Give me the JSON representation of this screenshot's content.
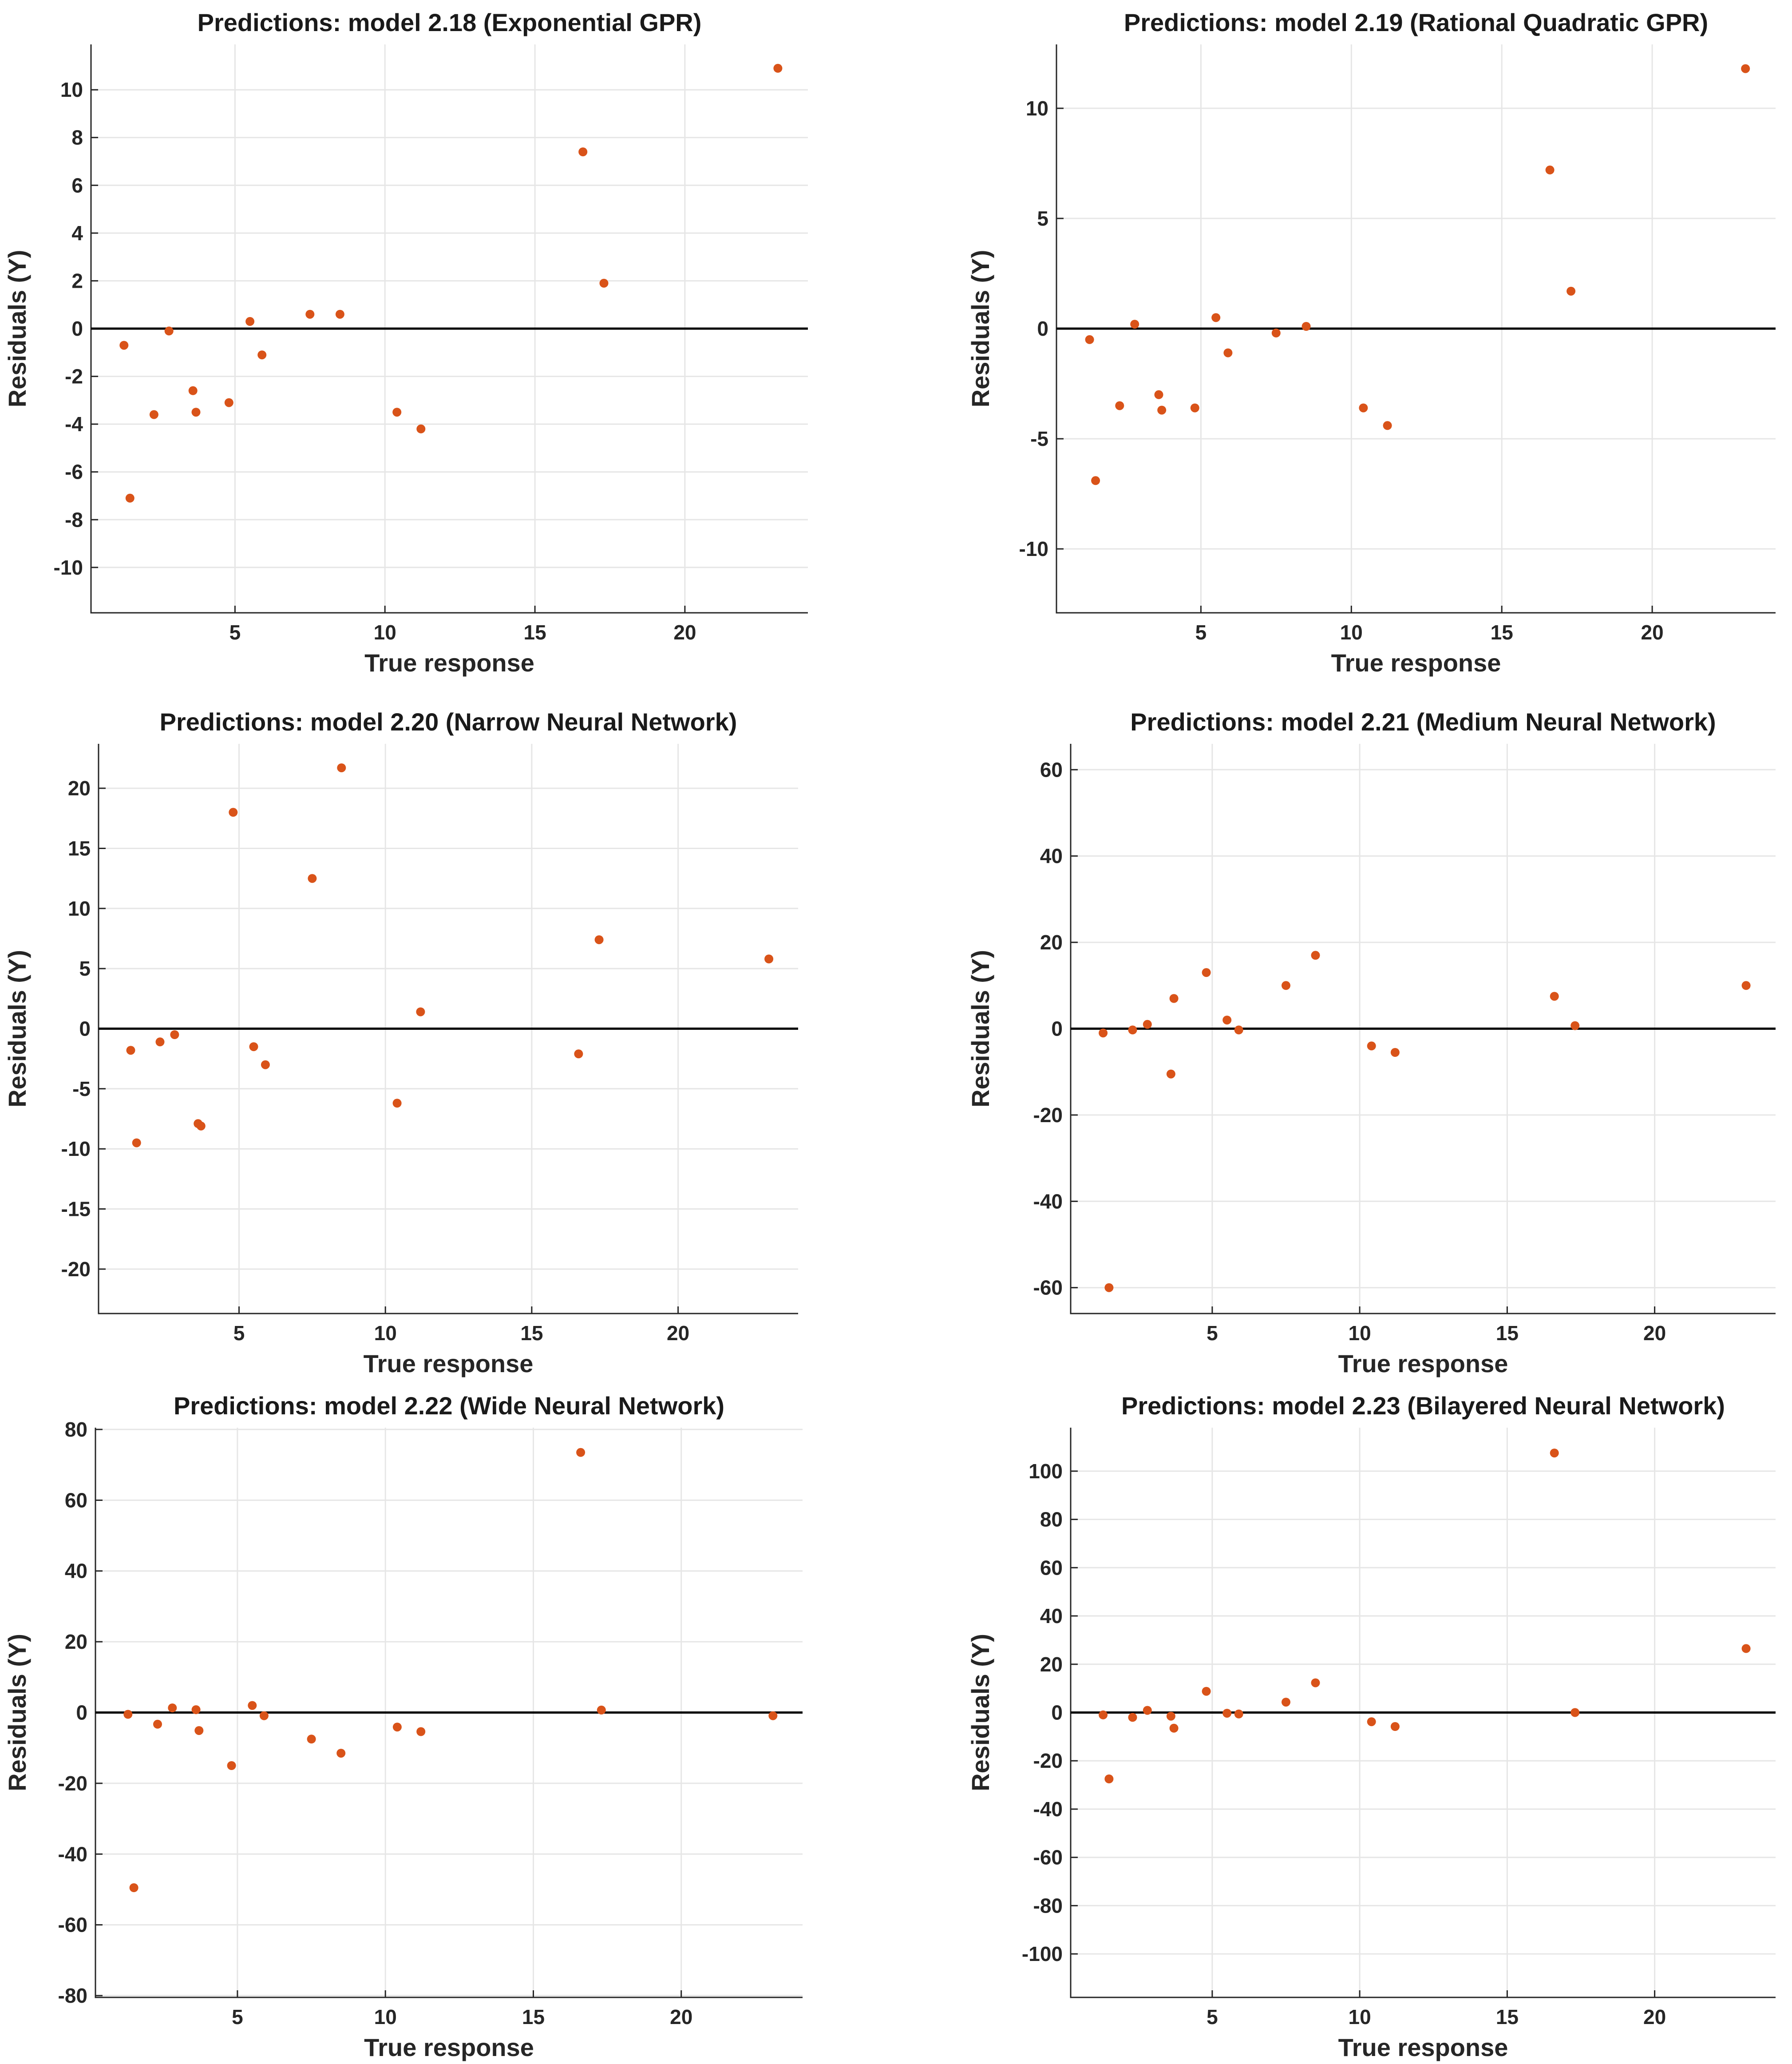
{
  "chart_data": [
    {
      "type": "scatter",
      "title": "Predictions: model 2.18 (Exponential GPR)",
      "xlabel": "True response",
      "ylabel": "Residuals (Y)",
      "xlim": [
        0.2,
        24.1
      ],
      "ylim": [
        -11.9,
        11.9
      ],
      "xticks": [
        5,
        10,
        15,
        20
      ],
      "yticks": [
        -10,
        -8,
        -6,
        -4,
        -2,
        0,
        2,
        4,
        6,
        8,
        10
      ],
      "grid": true,
      "zero_line": true,
      "marker_color": "#D95319",
      "x": [
        1.3,
        1.5,
        2.3,
        2.8,
        3.6,
        3.7,
        4.8,
        5.5,
        5.9,
        7.5,
        8.5,
        10.4,
        11.2,
        16.6,
        17.3,
        23.1
      ],
      "y": [
        -0.7,
        -7.1,
        -3.6,
        -0.1,
        -2.6,
        -3.5,
        -3.1,
        0.3,
        -1.1,
        0.6,
        0.6,
        -3.5,
        -4.2,
        7.4,
        1.9,
        10.9
      ]
    },
    {
      "type": "scatter",
      "title": "Predictions: model 2.19 (Rational Quadratic GPR)",
      "xlabel": "True response",
      "ylabel": "Residuals (Y)",
      "xlim": [
        0.2,
        24.1
      ],
      "ylim": [
        -12.9,
        12.9
      ],
      "xticks": [
        5,
        10,
        15,
        20
      ],
      "yticks": [
        -10,
        -5,
        0,
        5,
        10
      ],
      "grid": true,
      "zero_line": true,
      "marker_color": "#D95319",
      "x": [
        1.3,
        1.5,
        2.3,
        2.8,
        3.6,
        3.7,
        4.8,
        5.5,
        5.9,
        7.5,
        8.5,
        10.4,
        11.2,
        16.6,
        17.3,
        23.1
      ],
      "y": [
        -0.5,
        -6.9,
        -3.5,
        0.2,
        -3.0,
        -3.7,
        -3.6,
        0.5,
        -1.1,
        -0.2,
        0.1,
        -3.6,
        -4.4,
        7.2,
        1.7,
        11.8
      ]
    },
    {
      "type": "scatter",
      "title": "Predictions: model 2.20 (Narrow Neural Network)",
      "xlabel": "True response",
      "ylabel": "Residuals (Y)",
      "xlim": [
        0.2,
        24.1
      ],
      "ylim": [
        -23.7,
        23.7
      ],
      "xticks": [
        5,
        10,
        15,
        20
      ],
      "yticks": [
        -20,
        -15,
        -10,
        -5,
        0,
        5,
        10,
        15,
        20
      ],
      "grid": true,
      "zero_line": true,
      "marker_color": "#D95319",
      "x": [
        1.3,
        1.5,
        2.3,
        2.8,
        3.6,
        3.7,
        4.8,
        5.5,
        5.9,
        7.5,
        8.5,
        10.4,
        11.2,
        16.6,
        17.3,
        23.1
      ],
      "y": [
        -1.8,
        -9.5,
        -1.1,
        -0.5,
        -7.9,
        -8.1,
        18.0,
        -1.5,
        -3.0,
        12.5,
        21.7,
        -6.2,
        1.4,
        -2.1,
        7.4,
        5.8
      ]
    },
    {
      "type": "scatter",
      "title": "Predictions: model 2.21 (Medium Neural Network)",
      "xlabel": "True response",
      "ylabel": "Residuals (Y)",
      "xlim": [
        0.2,
        24.1
      ],
      "ylim": [
        -66,
        66
      ],
      "xticks": [
        5,
        10,
        15,
        20
      ],
      "yticks": [
        -60,
        -40,
        -20,
        0,
        20,
        40,
        60
      ],
      "grid": true,
      "zero_line": true,
      "marker_color": "#D95319",
      "x": [
        1.3,
        1.5,
        2.3,
        2.8,
        3.6,
        3.7,
        4.8,
        5.5,
        5.9,
        7.5,
        8.5,
        10.4,
        11.2,
        16.6,
        17.3,
        23.1
      ],
      "y": [
        -1.0,
        -60.0,
        -0.3,
        1.0,
        -10.5,
        7.0,
        13.0,
        2.0,
        -0.3,
        10.0,
        17.0,
        -4.0,
        -5.5,
        7.5,
        0.7,
        10.0
      ]
    },
    {
      "type": "scatter",
      "title": "Predictions: model 2.22 (Wide Neural Network)",
      "xlabel": "True response",
      "ylabel": "Residuals (Y)",
      "xlim": [
        0.2,
        24.1
      ],
      "ylim": [
        -80.5,
        80.5
      ],
      "xticks": [
        5,
        10,
        15,
        20
      ],
      "yticks": [
        -80,
        -60,
        -40,
        -20,
        0,
        20,
        40,
        60,
        80
      ],
      "grid": true,
      "zero_line": true,
      "marker_color": "#D95319",
      "x": [
        1.3,
        1.5,
        2.3,
        2.8,
        3.6,
        3.7,
        4.8,
        5.5,
        5.9,
        7.5,
        8.5,
        10.4,
        11.2,
        16.6,
        17.3,
        23.1
      ],
      "y": [
        -0.5,
        -49.5,
        -3.3,
        1.3,
        0.8,
        -5.1,
        -15.0,
        2.0,
        -0.9,
        -7.5,
        -11.5,
        -4.1,
        -5.4,
        73.5,
        0.7,
        -0.9
      ]
    },
    {
      "type": "scatter",
      "title": "Predictions: model 2.23 (Bilayered Neural Network)",
      "xlabel": "True response",
      "ylabel": "Residuals (Y)",
      "xlim": [
        0.2,
        24.1
      ],
      "ylim": [
        -118,
        118
      ],
      "xticks": [
        5,
        10,
        15,
        20
      ],
      "yticks": [
        -100,
        -80,
        -60,
        -40,
        -20,
        0,
        20,
        40,
        60,
        80,
        100
      ],
      "grid": true,
      "zero_line": true,
      "marker_color": "#D95319",
      "x": [
        1.3,
        1.5,
        2.3,
        2.8,
        3.6,
        3.7,
        4.8,
        5.5,
        5.9,
        7.5,
        8.5,
        10.4,
        11.2,
        16.6,
        17.3,
        23.1
      ],
      "y": [
        -1.0,
        -27.5,
        -2.0,
        0.9,
        -1.5,
        -6.5,
        8.8,
        -0.3,
        -0.6,
        4.3,
        12.3,
        -3.8,
        -5.8,
        107.5,
        0.0,
        26.5
      ]
    }
  ]
}
